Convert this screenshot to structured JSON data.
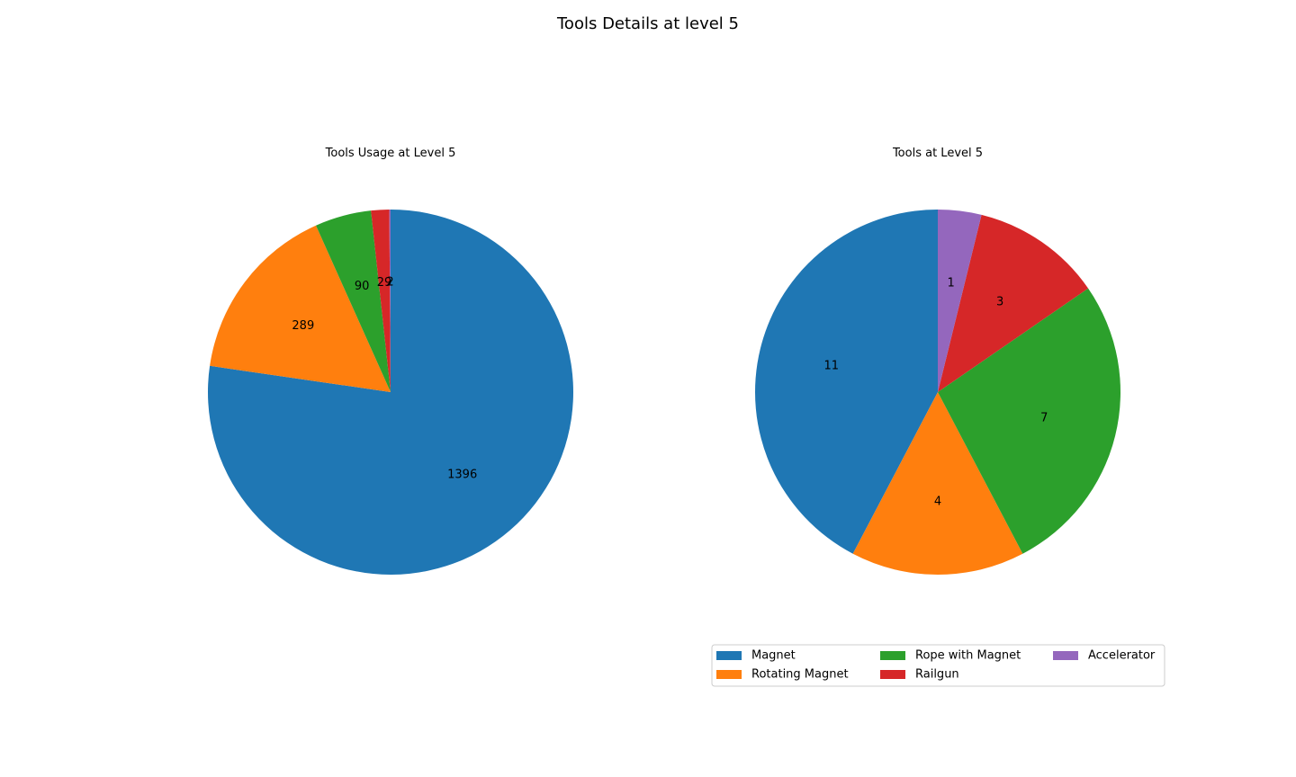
{
  "figure_title": "Tools Details at level 5",
  "chart_data": [
    {
      "type": "pie",
      "title": "Tools Usage at Level 5",
      "labels": [
        "Magnet",
        "Rotating Magnet",
        "Rope with Magnet",
        "Railgun",
        "Accelerator"
      ],
      "values": [
        1396,
        289,
        90,
        29,
        2
      ],
      "value_labels": [
        "1396",
        "289",
        "90",
        "29",
        "2"
      ],
      "start_angle_deg": 90,
      "direction": "clockwise"
    },
    {
      "type": "pie",
      "title": "Tools at Level 5",
      "labels": [
        "Magnet",
        "Rotating Magnet",
        "Rope with Magnet",
        "Railgun",
        "Accelerator"
      ],
      "values": [
        11,
        4,
        7,
        3,
        1
      ],
      "value_labels": [
        "11",
        "4",
        "7",
        "3",
        "1"
      ],
      "start_angle_deg": 90,
      "direction": "counterclockwise"
    }
  ],
  "legend": {
    "placement": "lower-right",
    "columns": 3,
    "items": [
      {
        "label": "Magnet",
        "color": "#1f77b4"
      },
      {
        "label": "Rotating Magnet",
        "color": "#ff7f0e"
      },
      {
        "label": "Rope with Magnet",
        "color": "#2ca02c"
      },
      {
        "label": "Railgun",
        "color": "#d62728"
      },
      {
        "label": "Accelerator",
        "color": "#9467bd"
      }
    ]
  },
  "colors": [
    "#1f77b4",
    "#ff7f0e",
    "#2ca02c",
    "#d62728",
    "#9467bd"
  ]
}
